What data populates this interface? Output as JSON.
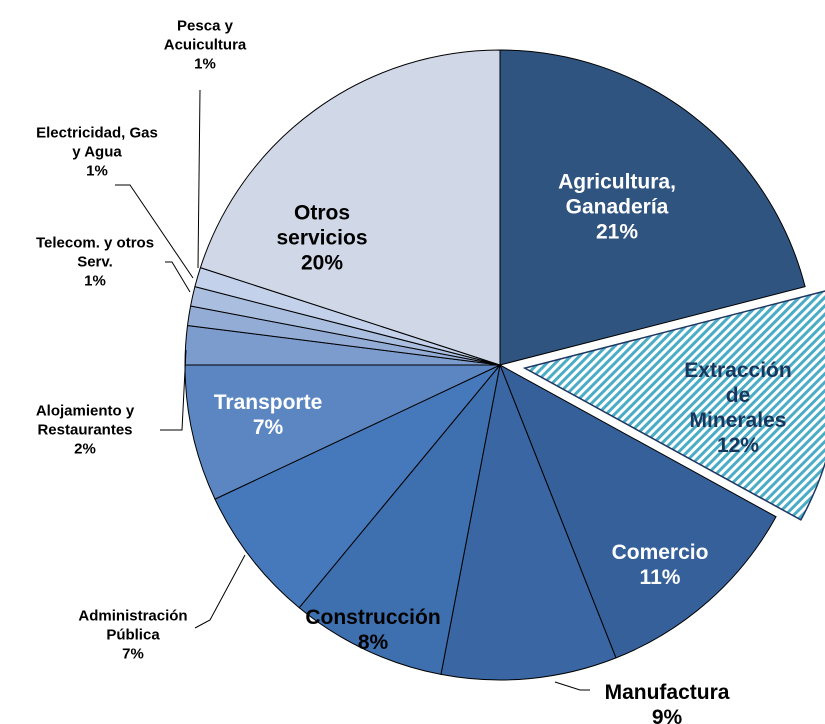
{
  "chart_data": {
    "type": "pie",
    "categories": [
      "Agricultura,\nGanadería",
      "Extracción de\nMinerales",
      "Comercio",
      "Manufactura",
      "Construcción",
      "Administración\nPública",
      "Transporte",
      "Alojamiento y\nRestaurantes",
      "Telecom. y otros\nServ.",
      "Electricidad, Gas\ny Agua",
      "Pesca y\nAcuicultura",
      "Otros\nservicios"
    ],
    "values": [
      21,
      12,
      11,
      9,
      8,
      7,
      7,
      2,
      1,
      1,
      1,
      20
    ],
    "value_labels": [
      "21%",
      "12%",
      "11%",
      "9%",
      "8%",
      "7%",
      "7%",
      "2%",
      "1%",
      "1%",
      "1%",
      "20%"
    ],
    "colors": [
      "#2f5480",
      "#4bacc6",
      "#35609a",
      "#3a67a3",
      "#3e6fae",
      "#4679bb",
      "#5b86c2",
      "#7c9ccd",
      "#92acd6",
      "#aabfe0",
      "#c3d1ea",
      "#d0d8e8"
    ],
    "exploded": 1,
    "hatched": 1
  }
}
